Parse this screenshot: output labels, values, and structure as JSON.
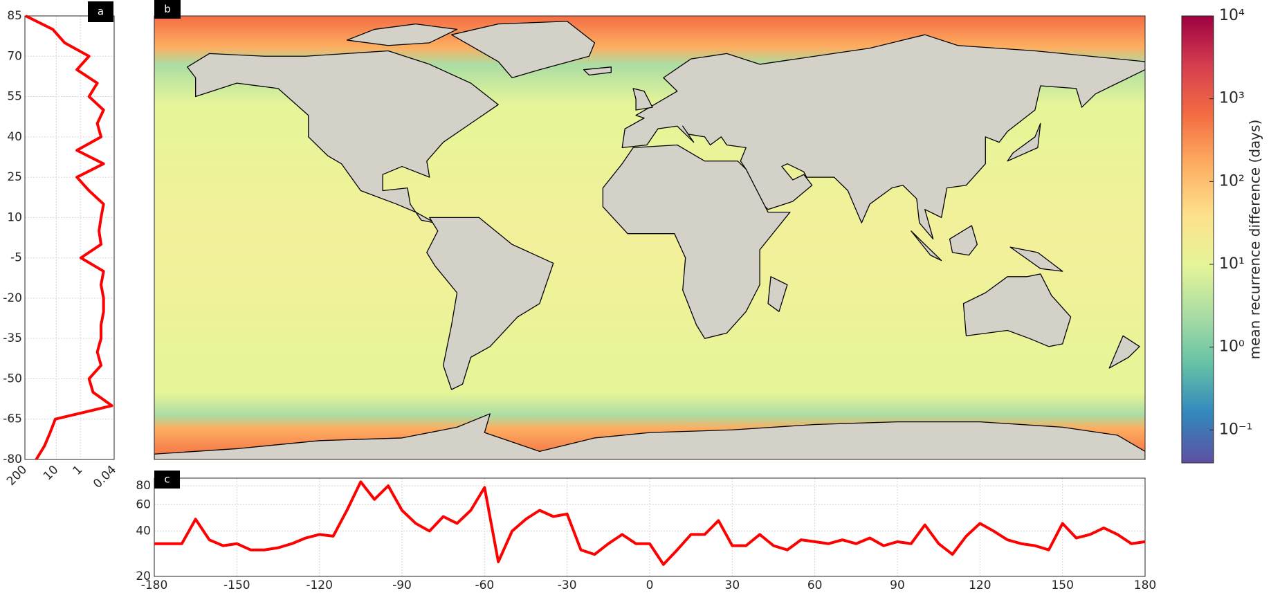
{
  "chart_data": [
    {
      "type": "line",
      "label": "a",
      "orientation": "vertical",
      "color": "#ff0000",
      "xscale": "log",
      "grid": true,
      "y": [
        -80,
        -75,
        -70,
        -65,
        -60,
        -55,
        -50,
        -45,
        -40,
        -35,
        -30,
        -25,
        -20,
        -15,
        -10,
        -5,
        0,
        5,
        10,
        15,
        20,
        25,
        30,
        35,
        40,
        45,
        50,
        55,
        60,
        65,
        70,
        75,
        80,
        85
      ],
      "values": [
        68,
        31,
        18,
        11,
        0.05,
        0.3,
        0.44,
        0.14,
        0.2,
        0.14,
        0.14,
        0.11,
        0.11,
        0.14,
        0.11,
        0.96,
        0.14,
        0.17,
        0.14,
        0.11,
        0.44,
        1.4,
        0.11,
        1.4,
        0.14,
        0.2,
        0.11,
        0.44,
        0.2,
        1.4,
        0.44,
        4.5,
        14,
        185
      ],
      "xlim": [
        200,
        0.04
      ],
      "xticks": [
        200,
        10,
        1,
        0.04
      ],
      "ylim": [
        -80,
        85
      ],
      "yticks": [
        85,
        70,
        55,
        40,
        25,
        10,
        -5,
        -20,
        -35,
        -50,
        -65,
        -80
      ]
    },
    {
      "type": "map",
      "label": "b",
      "colorbar": {
        "label": "mean recurrence difference (days)",
        "scale": "log",
        "clim": [
          0.04,
          10000
        ],
        "colors": [
          "#5e4fa2",
          "#3288bd",
          "#66c2a5",
          "#abdda4",
          "#e6f598",
          "#fee08b",
          "#fdae61",
          "#f46d43",
          "#d53e4f",
          "#9e0142"
        ],
        "ticks": [
          {
            "value": 0.1,
            "label": "10⁻¹"
          },
          {
            "value": 1,
            "label": "10⁰"
          },
          {
            "value": 10,
            "label": "10¹"
          },
          {
            "value": 100,
            "label": "10²"
          },
          {
            "value": 1000,
            "label": "10³"
          },
          {
            "value": 10000,
            "label": "10⁴"
          }
        ]
      }
    },
    {
      "type": "line",
      "label": "c",
      "color": "#ff0000",
      "yscale": "log",
      "grid": true,
      "x": [
        -180,
        -175,
        -170,
        -165,
        -160,
        -155,
        -150,
        -145,
        -140,
        -135,
        -130,
        -125,
        -120,
        -115,
        -110,
        -105,
        -100,
        -95,
        -90,
        -85,
        -80,
        -75,
        -70,
        -65,
        -60,
        -55,
        -50,
        -45,
        -40,
        -35,
        -30,
        -25,
        -20,
        -15,
        -10,
        -5,
        0,
        5,
        10,
        15,
        20,
        25,
        30,
        35,
        40,
        45,
        50,
        55,
        60,
        65,
        70,
        75,
        80,
        85,
        90,
        95,
        100,
        105,
        110,
        115,
        120,
        125,
        130,
        135,
        140,
        145,
        150,
        155,
        160,
        165,
        170,
        175,
        180
      ],
      "values": [
        33,
        33,
        33,
        48,
        35,
        32,
        33,
        30,
        30,
        31,
        33,
        36,
        38,
        37,
        55,
        85,
        65,
        80,
        55,
        45,
        40,
        50,
        45,
        55,
        78,
        25,
        40,
        48,
        55,
        50,
        52,
        30,
        28,
        33,
        38,
        33,
        33,
        24,
        30,
        38,
        38,
        47,
        32,
        32,
        38,
        32,
        30,
        35,
        34,
        33,
        35,
        33,
        36,
        32,
        34,
        33,
        44,
        33,
        28,
        37,
        45,
        40,
        35,
        33,
        32,
        30,
        45,
        36,
        38,
        42,
        38,
        33,
        34
      ],
      "xlim": [
        -180,
        180
      ],
      "xticks": [
        -180,
        -150,
        -120,
        -90,
        -60,
        -30,
        0,
        30,
        60,
        90,
        120,
        150,
        180
      ],
      "ylim": [
        20,
        90
      ],
      "yticks": [
        20,
        40,
        60,
        80
      ]
    }
  ]
}
